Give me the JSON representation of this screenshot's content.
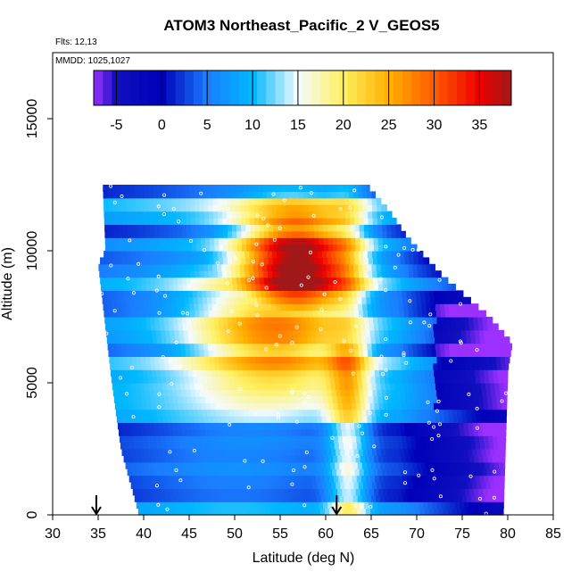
{
  "chart_data": {
    "type": "heatmap",
    "title": "ATOM3 Northeast_Pacific_2 V_GEOS5",
    "annotations": [
      "Flts: 12,13",
      "MMDD: 1025,1027"
    ],
    "xlabel": "Latitude (deg N)",
    "ylabel": "Altitude (m)",
    "xlim": [
      30,
      85
    ],
    "ylim": [
      0,
      17500
    ],
    "x_ticks": [
      30,
      35,
      40,
      45,
      50,
      55,
      60,
      65,
      70,
      75,
      80,
      85
    ],
    "y_ticks": [
      0,
      5000,
      10000,
      15000
    ],
    "colorbar": {
      "range": [
        -7.5,
        38.5
      ],
      "ticks": [
        -5,
        0,
        5,
        10,
        15,
        20,
        25,
        30,
        35
      ],
      "stops": [
        {
          "v": -7.5,
          "color": "#9b30ff"
        },
        {
          "v": -5,
          "color": "#1010c0"
        },
        {
          "v": 0,
          "color": "#0000b8"
        },
        {
          "v": 5,
          "color": "#1a7dff"
        },
        {
          "v": 10,
          "color": "#00b8ff"
        },
        {
          "v": 15,
          "color": "#f4fbff"
        },
        {
          "v": 20,
          "color": "#fff060"
        },
        {
          "v": 25,
          "color": "#ffb000"
        },
        {
          "v": 30,
          "color": "#ff5a00"
        },
        {
          "v": 35,
          "color": "#ee0000"
        },
        {
          "v": 38.5,
          "color": "#a01818"
        }
      ]
    },
    "flight_markers_lat": [
      34.8,
      61.2
    ],
    "domain": {
      "lat_min": 35.5,
      "lat_max": 80.5,
      "alt_min": 0,
      "alt_max": 12500,
      "right_edge": [
        [
          12500,
          64.5
        ],
        [
          11500,
          67
        ],
        [
          10500,
          69
        ],
        [
          9000,
          73
        ],
        [
          7500,
          78
        ],
        [
          6500,
          80.5
        ],
        [
          5500,
          80
        ],
        [
          0,
          79.5
        ]
      ],
      "left_edge": [
        [
          12500,
          35.5
        ],
        [
          10000,
          35.8
        ],
        [
          9500,
          35
        ],
        [
          5000,
          36.5
        ],
        [
          2500,
          37.5
        ],
        [
          0,
          39.5
        ]
      ]
    },
    "field_note": "wind speed field values in m/s as shown by colorbar"
  }
}
